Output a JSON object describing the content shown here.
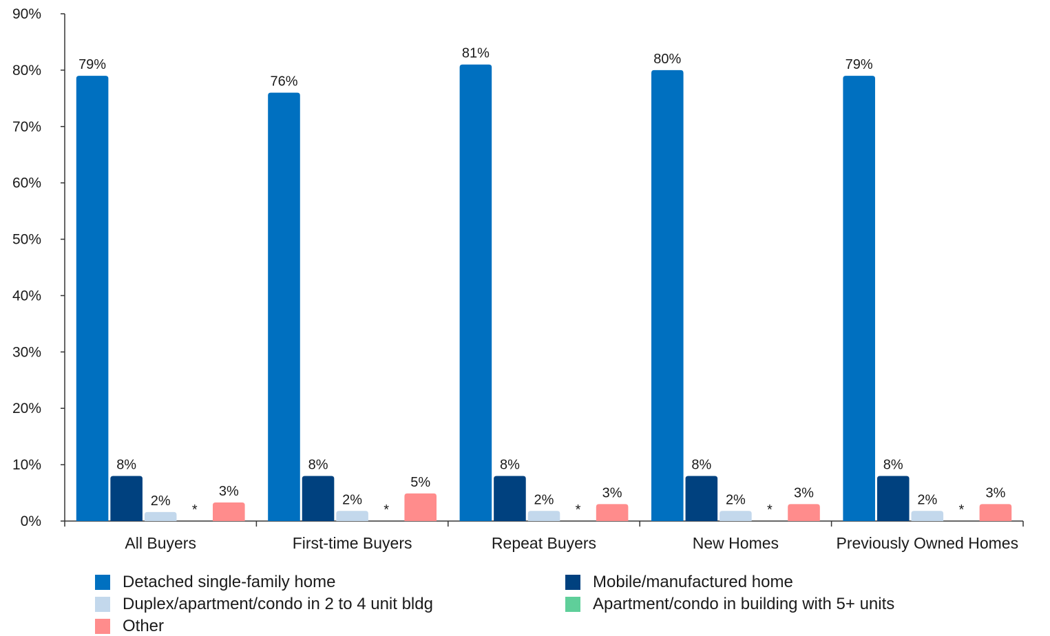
{
  "chart_data": {
    "type": "bar",
    "categories": [
      "All Buyers",
      "First-time Buyers",
      "Repeat Buyers",
      "New Homes",
      "Previously Owned Homes"
    ],
    "series": [
      {
        "name": "Detached single-family home",
        "color": "#0070c0",
        "values": [
          79,
          76,
          81,
          80,
          79
        ],
        "labels": [
          "79%",
          "76%",
          "81%",
          "80%",
          "79%"
        ]
      },
      {
        "name": "Mobile/manufactured home",
        "color": "#00417f",
        "values": [
          8,
          8,
          8,
          8,
          8
        ],
        "labels": [
          "8%",
          "8%",
          "8%",
          "8%",
          "8%"
        ]
      },
      {
        "name": "Duplex/apartment/condo in 2 to 4 unit bldg",
        "color": "#c3d8ec",
        "values": [
          1.6,
          1.8,
          1.8,
          1.8,
          1.8
        ],
        "labels": [
          "2%",
          "2%",
          "2%",
          "2%",
          "2%"
        ]
      },
      {
        "name": "Apartment/condo in building with 5+ units",
        "color": "#5fcf9a",
        "values": [
          0,
          0,
          0,
          0,
          0
        ],
        "labels": [
          "*",
          "*",
          "*",
          "*",
          "*"
        ]
      },
      {
        "name": "Other",
        "color": "#ff8c8c",
        "values": [
          3.3,
          4.9,
          3.0,
          3.0,
          3.0
        ],
        "labels": [
          "3%",
          "5%",
          "3%",
          "3%",
          "3%"
        ]
      }
    ],
    "ylim": [
      0,
      90
    ],
    "yticks": [
      0,
      10,
      20,
      30,
      40,
      50,
      60,
      70,
      80,
      90
    ],
    "ytick_labels": [
      "0%",
      "10%",
      "20%",
      "30%",
      "40%",
      "50%",
      "60%",
      "70%",
      "80%",
      "90%"
    ],
    "title": "",
    "xlabel": "",
    "ylabel": "",
    "grid": false,
    "legend_position": "bottom"
  }
}
